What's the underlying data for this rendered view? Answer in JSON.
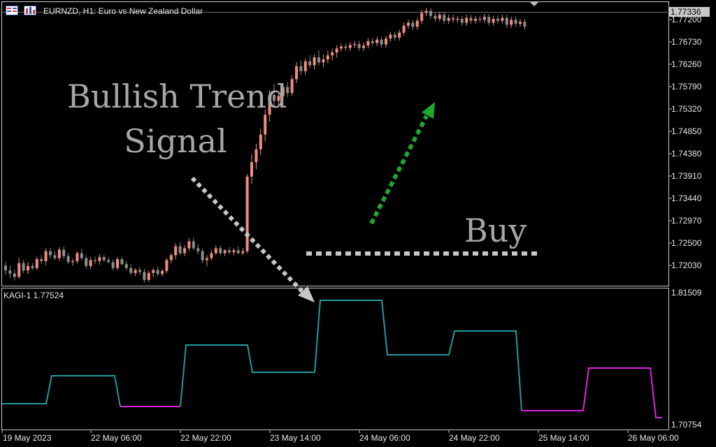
{
  "chart_header": {
    "symbol_text": "EURNZD, H1:  Euro vs New Zealand Dollar"
  },
  "current_price_box": "1.77336",
  "price_axis": [
    "1.77200",
    "1.76730",
    "1.76260",
    "1.75790",
    "1.75320",
    "1.74850",
    "1.74380",
    "1.73910",
    "1.73440",
    "1.72970",
    "1.72500",
    "1.72030"
  ],
  "kagi_axis": [
    "1.81509",
    "1.70754"
  ],
  "time_axis": [
    "19 May 2023",
    "22 May 06:00",
    "22 May 22:00",
    "23 May 14:00",
    "24 May 06:00",
    "24 May 22:00",
    "25 May 14:00",
    "26 May 06:00"
  ],
  "indicator": {
    "label": "KAGI-1 1.77524"
  },
  "annotations": {
    "bullish_line1": "Bullish Trend",
    "bullish_line2": "Signal",
    "buy": "Buy"
  },
  "colors": {
    "bull_candle": "#f08c80",
    "bear_candle": "#8c8c8c",
    "kagi_up": "#1f9aa0",
    "kagi_down": "#e020e0",
    "arrow_green": "#1ea832",
    "arrow_gray": "#c8c8c8",
    "grid_frame": "#c8c8c8"
  },
  "chart_data": {
    "type": "candlestick",
    "price_range": [
      1.718,
      1.7745
    ],
    "candles": [
      [
        1.7215,
        1.7222,
        1.7196,
        1.7205
      ],
      [
        1.7205,
        1.7215,
        1.719,
        1.7199
      ],
      [
        1.7199,
        1.7207,
        1.7185,
        1.7192
      ],
      [
        1.7192,
        1.723,
        1.7189,
        1.722
      ],
      [
        1.722,
        1.7226,
        1.72,
        1.7205
      ],
      [
        1.7205,
        1.7222,
        1.7198,
        1.7214
      ],
      [
        1.7214,
        1.722,
        1.7206,
        1.721
      ],
      [
        1.721,
        1.7233,
        1.7206,
        1.7228
      ],
      [
        1.7228,
        1.7236,
        1.7219,
        1.7224
      ],
      [
        1.7224,
        1.725,
        1.7216,
        1.7244
      ],
      [
        1.7244,
        1.7251,
        1.7229,
        1.7236
      ],
      [
        1.7236,
        1.7245,
        1.7226,
        1.723
      ],
      [
        1.723,
        1.7252,
        1.7224,
        1.7247
      ],
      [
        1.7247,
        1.7254,
        1.7228,
        1.7234
      ],
      [
        1.7234,
        1.724,
        1.7218,
        1.7222
      ],
      [
        1.7222,
        1.7229,
        1.7215,
        1.7224
      ],
      [
        1.7224,
        1.7244,
        1.7219,
        1.724
      ],
      [
        1.724,
        1.7249,
        1.7226,
        1.723
      ],
      [
        1.723,
        1.7236,
        1.7208,
        1.7214
      ],
      [
        1.7214,
        1.7232,
        1.7208,
        1.7226
      ],
      [
        1.7226,
        1.7233,
        1.7218,
        1.7224
      ],
      [
        1.7224,
        1.7238,
        1.7217,
        1.7232
      ],
      [
        1.7232,
        1.7236,
        1.7222,
        1.7226
      ],
      [
        1.7226,
        1.7232,
        1.7219,
        1.7222
      ],
      [
        1.7222,
        1.7227,
        1.7205,
        1.721
      ],
      [
        1.721,
        1.7232,
        1.7206,
        1.7228
      ],
      [
        1.7228,
        1.7232,
        1.7215,
        1.7218
      ],
      [
        1.7218,
        1.7224,
        1.7206,
        1.721
      ],
      [
        1.721,
        1.7218,
        1.7196,
        1.72
      ],
      [
        1.72,
        1.721,
        1.7194,
        1.7206
      ],
      [
        1.7206,
        1.7212,
        1.7196,
        1.7202
      ],
      [
        1.7202,
        1.7208,
        1.718,
        1.7186
      ],
      [
        1.7186,
        1.7204,
        1.7182,
        1.72
      ],
      [
        1.72,
        1.721,
        1.7192,
        1.7206
      ],
      [
        1.7206,
        1.7213,
        1.7194,
        1.7198
      ],
      [
        1.7198,
        1.7208,
        1.7193,
        1.7204
      ],
      [
        1.7204,
        1.723,
        1.72,
        1.7226
      ],
      [
        1.7226,
        1.724,
        1.722,
        1.7236
      ],
      [
        1.7236,
        1.726,
        1.7228,
        1.7254
      ],
      [
        1.7254,
        1.7262,
        1.7236,
        1.724
      ],
      [
        1.724,
        1.7256,
        1.7234,
        1.725
      ],
      [
        1.725,
        1.727,
        1.7244,
        1.7264
      ],
      [
        1.7264,
        1.7271,
        1.7246,
        1.725
      ],
      [
        1.725,
        1.7258,
        1.7238,
        1.7244
      ],
      [
        1.7244,
        1.725,
        1.722,
        1.7226
      ],
      [
        1.7226,
        1.7236,
        1.7214,
        1.723
      ],
      [
        1.723,
        1.7246,
        1.7226,
        1.724
      ],
      [
        1.724,
        1.7256,
        1.7236,
        1.725
      ],
      [
        1.725,
        1.7256,
        1.7236,
        1.724
      ],
      [
        1.724,
        1.7248,
        1.7234,
        1.7246
      ],
      [
        1.7246,
        1.7252,
        1.7238,
        1.7242
      ],
      [
        1.7242,
        1.725,
        1.7236,
        1.7246
      ],
      [
        1.7246,
        1.7254,
        1.7238,
        1.724
      ],
      [
        1.724,
        1.725,
        1.7236,
        1.7244
      ],
      [
        1.7244,
        1.74,
        1.724,
        1.7395
      ],
      [
        1.7395,
        1.744,
        1.738,
        1.7424
      ],
      [
        1.7424,
        1.7462,
        1.741,
        1.745
      ],
      [
        1.745,
        1.7492,
        1.7438,
        1.748
      ],
      [
        1.748,
        1.753,
        1.7466,
        1.752
      ],
      [
        1.752,
        1.757,
        1.7506,
        1.756
      ],
      [
        1.756,
        1.7582,
        1.7538,
        1.7548
      ],
      [
        1.7548,
        1.7568,
        1.7534,
        1.7558
      ],
      [
        1.7558,
        1.7584,
        1.755,
        1.7576
      ],
      [
        1.7576,
        1.7586,
        1.7556,
        1.7564
      ],
      [
        1.7564,
        1.76,
        1.7558,
        1.7592
      ],
      [
        1.7592,
        1.7626,
        1.7584,
        1.7618
      ],
      [
        1.7618,
        1.763,
        1.76,
        1.7608
      ],
      [
        1.7608,
        1.7634,
        1.76,
        1.7628
      ],
      [
        1.7628,
        1.764,
        1.7614,
        1.762
      ],
      [
        1.762,
        1.7642,
        1.7612,
        1.7636
      ],
      [
        1.7636,
        1.765,
        1.762,
        1.7626
      ],
      [
        1.7626,
        1.7642,
        1.7616,
        1.7632
      ],
      [
        1.7632,
        1.765,
        1.7624,
        1.764
      ],
      [
        1.764,
        1.7654,
        1.763,
        1.7646
      ],
      [
        1.7646,
        1.766,
        1.7636,
        1.7654
      ]
    ]
  }
}
